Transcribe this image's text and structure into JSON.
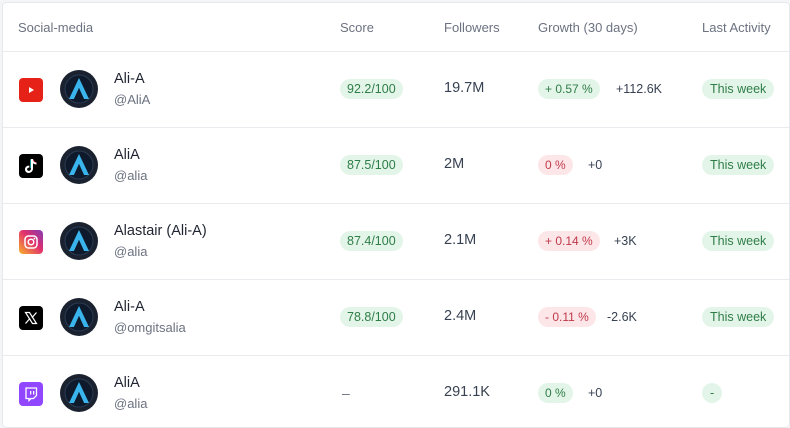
{
  "columns": {
    "social": "Social-media",
    "score": "Score",
    "followers": "Followers",
    "growth": "Growth (30 days)",
    "activity": "Last Activity"
  },
  "rows": [
    {
      "platform": "youtube-icon",
      "name": "Ali-A",
      "handle": "@AliA",
      "score": "92.2/100",
      "followers": "19.7M",
      "growth": "+ 0.57 %",
      "growth_tone": "pos",
      "delta": "+112.6K",
      "activity": "This week"
    },
    {
      "platform": "tiktok-icon",
      "name": "AliA",
      "handle": "@alia",
      "score": "87.5/100",
      "followers": "2M",
      "growth": "0 %",
      "growth_tone": "neg",
      "delta": "+0",
      "activity": "This week"
    },
    {
      "platform": "instagram-icon",
      "name": "Alastair (Ali-A)",
      "handle": "@alia",
      "score": "87.4/100",
      "followers": "2.1M",
      "growth": "+ 0.14 %",
      "growth_tone": "neg",
      "delta": "+3K",
      "activity": "This week"
    },
    {
      "platform": "x-icon",
      "name": "Ali-A",
      "handle": "@omgitsalia",
      "score": "78.8/100",
      "followers": "2.4M",
      "growth": "- 0.11 %",
      "growth_tone": "neg",
      "delta": "-2.6K",
      "activity": "This week"
    },
    {
      "platform": "twitch-icon",
      "name": "AliA",
      "handle": "@alia",
      "score": "–",
      "followers": "291.1K",
      "growth": "0 %",
      "growth_tone": "zero",
      "delta": "+0",
      "activity": "-"
    }
  ],
  "colors": {
    "youtube": "#e62117",
    "tiktok": "#000000",
    "instagram": "#e1306c",
    "x": "#000000",
    "twitch": "#9146ff",
    "positive_bg": "#e3f5e8",
    "negative_bg": "#fde6e8"
  }
}
